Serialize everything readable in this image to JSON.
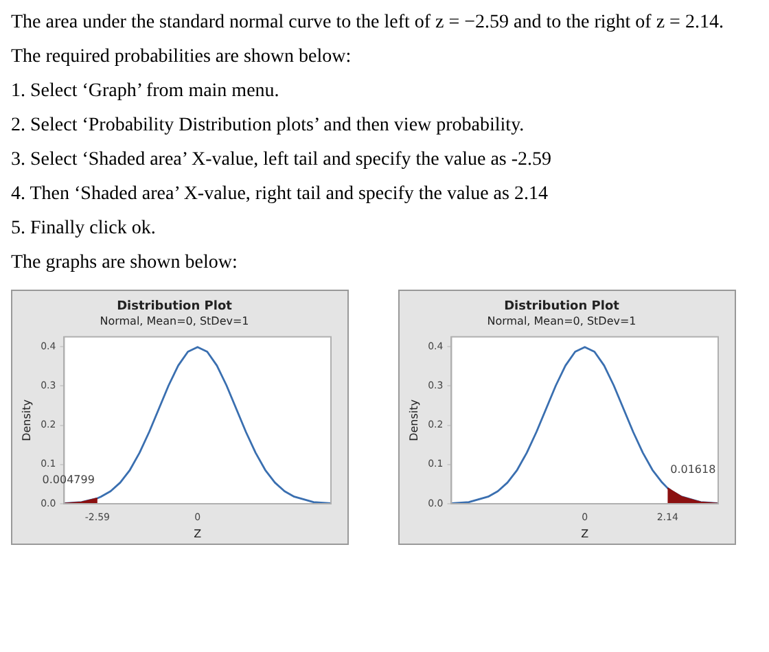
{
  "chart_data": [
    {
      "type": "other",
      "annotations": [
        "The area under the standard normal curve to the left of z = −2.59 and to the right of z = 2.14.",
        "The required probabilities are shown below:",
        "1.  Select ‘Graph’ from main menu.",
        "2.  Select ‘Probability Distribution plots’ and then view probability.",
        "3.  Select ‘Shaded area’ X-value, left tail and specify the value as -2.59",
        "4.  Then ‘Shaded area’ X-value, right tail and specify the value as 2.14",
        "5.  Finally click ok.",
        "The graphs are shown below:"
      ]
    },
    {
      "type": "line",
      "title": "Distribution Plot",
      "subtitle": "Normal, Mean=0, StDev=1",
      "xlabel": "Z",
      "ylabel": "Density",
      "marker": "none",
      "xlim": [
        -3.45,
        3.45
      ],
      "xticks": [
        -2.59,
        0
      ],
      "ylim": [
        0,
        0.425
      ],
      "yticks": [
        {
          "value": 0,
          "label": "0.0"
        },
        0.1,
        0.2,
        0.3,
        0.4
      ],
      "annotations": [
        {
          "text": "0.004799",
          "x": -2.59,
          "y": 0.014
        }
      ],
      "series": [
        {
          "type": "area",
          "color": "#8b1010",
          "x": [
            -3.45,
            -3,
            -2.59
          ],
          "values": [
            0.001,
            0.004,
            0.014
          ]
        },
        {
          "type": "line",
          "color": "#3a6fb0",
          "x": [
            -3.45,
            -3,
            -2.59,
            -2.5,
            -2.25,
            -2,
            -1.75,
            -1.5,
            -1.25,
            -1,
            -0.75,
            -0.5,
            -0.25,
            0,
            0.25,
            0.5,
            0.75,
            1,
            1.25,
            1.5,
            1.75,
            2,
            2.25,
            2.5,
            3,
            3.45
          ],
          "values": [
            0.001,
            0.004,
            0.014,
            0.018,
            0.032,
            0.054,
            0.086,
            0.13,
            0.183,
            0.242,
            0.301,
            0.352,
            0.387,
            0.399,
            0.387,
            0.352,
            0.301,
            0.242,
            0.183,
            0.13,
            0.086,
            0.054,
            0.032,
            0.018,
            0.004,
            0.001
          ]
        }
      ]
    },
    {
      "type": "line",
      "title": "Distribution Plot",
      "subtitle": "Normal, Mean=0, StDev=1",
      "xlabel": "Z",
      "ylabel": "Density",
      "marker": "none",
      "xlim": [
        -3.45,
        3.45
      ],
      "xticks": [
        0,
        2.14
      ],
      "ylim": [
        0,
        0.425
      ],
      "yticks": [
        {
          "value": 0,
          "label": "0.0"
        },
        0.1,
        0.2,
        0.3,
        0.4
      ],
      "annotations": [
        {
          "text": "0.01618",
          "x": 2.14,
          "y": 0.04
        }
      ],
      "series": [
        {
          "type": "area",
          "color": "#8b1010",
          "x": [
            2.14,
            2.5,
            3,
            3.45
          ],
          "values": [
            0.04,
            0.018,
            0.004,
            0.001
          ]
        },
        {
          "type": "line",
          "color": "#3a6fb0",
          "x": [
            -3.45,
            -3,
            -2.5,
            -2.25,
            -2,
            -1.75,
            -1.5,
            -1.25,
            -1,
            -0.75,
            -0.5,
            -0.25,
            0,
            0.25,
            0.5,
            0.75,
            1,
            1.25,
            1.5,
            1.75,
            2,
            2.14,
            2.25,
            2.5,
            3,
            3.45
          ],
          "values": [
            0.001,
            0.004,
            0.018,
            0.032,
            0.054,
            0.086,
            0.13,
            0.183,
            0.242,
            0.301,
            0.352,
            0.387,
            0.399,
            0.387,
            0.352,
            0.301,
            0.242,
            0.183,
            0.13,
            0.086,
            0.054,
            0.04,
            0.032,
            0.018,
            0.004,
            0.001
          ]
        }
      ]
    }
  ]
}
